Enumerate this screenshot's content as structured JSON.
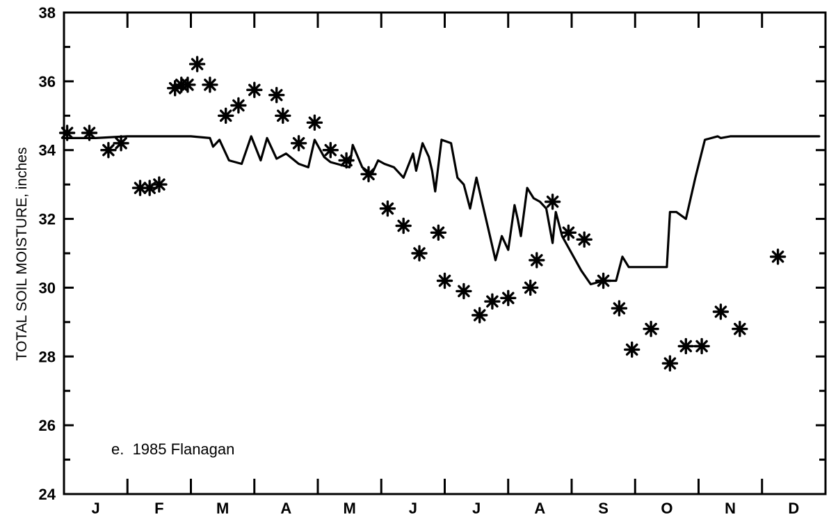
{
  "chart_data": {
    "type": "line",
    "title": "",
    "xlabel": "",
    "ylabel": "TOTAL SOIL MOISTURE, inches",
    "annotation": "e.  1985 Flanagan",
    "ylim": [
      24,
      38
    ],
    "xlim": [
      0,
      12
    ],
    "yticks": [
      24,
      26,
      28,
      30,
      32,
      34,
      36,
      38
    ],
    "month_labels": [
      "J",
      "F",
      "M",
      "A",
      "M",
      "J",
      "J",
      "A",
      "S",
      "O",
      "N",
      "D"
    ],
    "grid": false,
    "series": [
      {
        "type": "line",
        "x": [
          0.0,
          0.5,
          1.0,
          1.5,
          2.0,
          2.3,
          2.35,
          2.45,
          2.6,
          2.8,
          2.95,
          3.1,
          3.2,
          3.35,
          3.5,
          3.7,
          3.85,
          3.95,
          4.1,
          4.2,
          4.3,
          4.5,
          4.55,
          4.7,
          4.85,
          4.95,
          5.05,
          5.2,
          5.35,
          5.5,
          5.55,
          5.65,
          5.75,
          5.8,
          5.85,
          5.95,
          6.1,
          6.2,
          6.3,
          6.4,
          6.5,
          6.6,
          6.7,
          6.8,
          6.9,
          7.0,
          7.1,
          7.15,
          7.2,
          7.3,
          7.4,
          7.5,
          7.6,
          7.7,
          7.75,
          7.85,
          8.0,
          8.15,
          8.3,
          8.5,
          8.7,
          8.8,
          8.9,
          9.0,
          9.2,
          9.45,
          9.5,
          9.55,
          9.65,
          9.8,
          9.95,
          10.1,
          10.3,
          10.35,
          10.5,
          10.6,
          10.7,
          10.75,
          10.8,
          11.0,
          11.5,
          11.9
        ],
        "y": [
          34.35,
          34.35,
          34.4,
          34.4,
          34.4,
          34.35,
          34.1,
          34.3,
          33.7,
          33.6,
          34.4,
          33.7,
          34.35,
          33.75,
          33.9,
          33.6,
          33.5,
          34.3,
          33.8,
          33.65,
          33.6,
          33.5,
          34.15,
          33.5,
          33.3,
          33.7,
          33.6,
          33.5,
          33.2,
          33.9,
          33.4,
          34.2,
          33.8,
          33.4,
          32.8,
          34.3,
          34.2,
          33.2,
          33.0,
          32.3,
          33.2,
          32.4,
          31.6,
          30.8,
          31.5,
          31.1,
          32.4,
          32.0,
          31.5,
          32.9,
          32.6,
          32.5,
          32.3,
          31.3,
          32.2,
          31.5,
          31.0,
          30.5,
          30.1,
          30.2,
          30.2,
          30.9,
          30.6,
          30.6,
          30.6,
          30.6,
          30.6,
          32.2,
          32.2,
          32.0,
          33.2,
          34.3,
          34.4,
          34.35,
          34.4,
          34.4,
          34.4,
          34.4,
          34.4,
          34.4,
          34.4,
          34.4
        ]
      },
      {
        "type": "scatter",
        "marker": "asterisk",
        "x": [
          0.05,
          0.4,
          0.7,
          0.9,
          1.2,
          1.35,
          1.5,
          1.75,
          1.85,
          1.95,
          2.1,
          2.3,
          2.55,
          2.75,
          3.0,
          3.35,
          3.45,
          3.7,
          3.95,
          4.2,
          4.45,
          4.8,
          5.1,
          5.35,
          5.6,
          5.9,
          6.0,
          6.3,
          6.55,
          6.75,
          7.0,
          7.35,
          7.45,
          7.7,
          7.95,
          8.2,
          8.5,
          8.75,
          8.95,
          9.25,
          9.55,
          9.8,
          10.05,
          10.35,
          10.65,
          11.25
        ],
        "y": [
          34.5,
          34.5,
          34.0,
          34.2,
          32.9,
          32.9,
          33.0,
          35.8,
          35.9,
          35.9,
          36.5,
          35.9,
          35.0,
          35.3,
          35.75,
          35.6,
          35.0,
          34.2,
          34.8,
          34.0,
          33.7,
          33.3,
          32.3,
          31.8,
          31.0,
          31.6,
          30.2,
          29.9,
          29.2,
          29.6,
          29.7,
          30.0,
          30.8,
          32.5,
          31.6,
          31.4,
          30.2,
          29.4,
          28.2,
          28.8,
          27.8,
          28.3,
          28.3,
          29.3,
          28.8,
          30.9
        ]
      }
    ]
  }
}
